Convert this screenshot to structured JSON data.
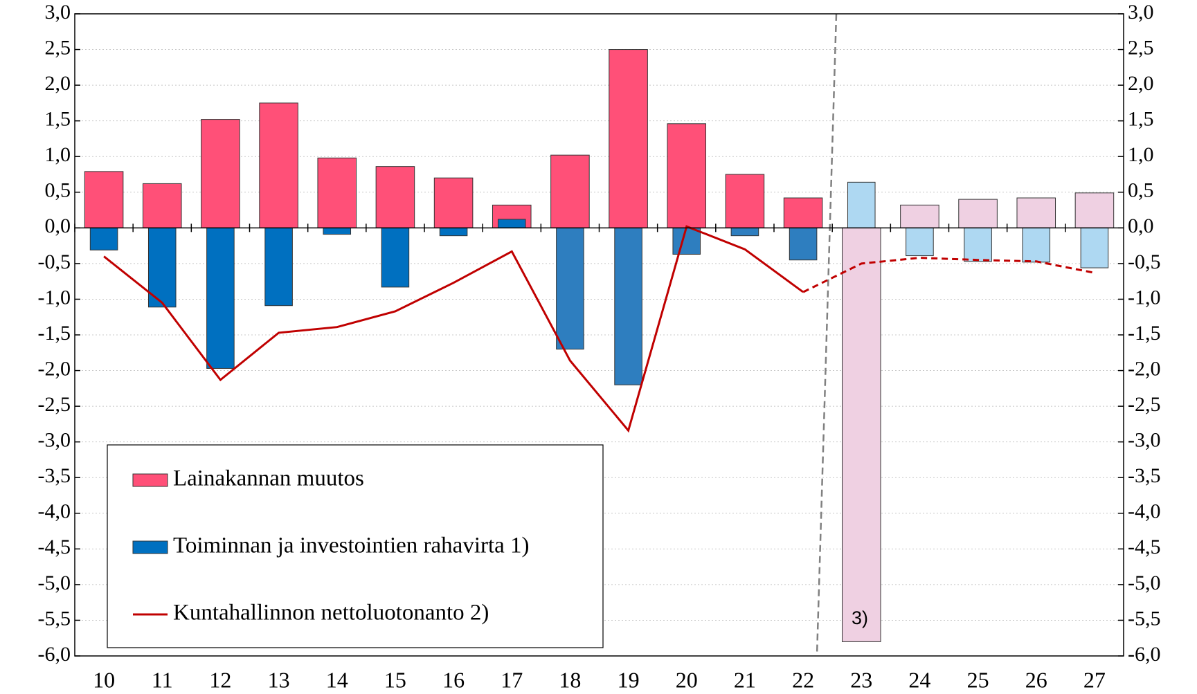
{
  "chart_data": {
    "type": "bar-line",
    "categories": [
      "10",
      "11",
      "12",
      "13",
      "14",
      "15",
      "16",
      "17",
      "18",
      "19",
      "20",
      "21",
      "22",
      "23",
      "24",
      "25",
      "26",
      "27"
    ],
    "series": [
      {
        "name": "Lainakannan muutos",
        "color": "#ff5078",
        "colors": [
          "#ff5078",
          "#ff5078",
          "#ff5078",
          "#ff5078",
          "#ff5078",
          "#ff5078",
          "#ff5078",
          "#ff5078",
          "#ff5078",
          "#ff5078",
          "#ff5078",
          "#ff5078",
          "#ff5078",
          "#efd0e2",
          "#efd0e2",
          "#efd0e2",
          "#efd0e2",
          "#efd0e2"
        ],
        "values": [
          0.79,
          0.62,
          1.52,
          1.75,
          0.98,
          0.86,
          0.7,
          0.32,
          1.02,
          2.5,
          1.46,
          0.75,
          0.42,
          -5.8,
          0.32,
          0.4,
          0.42,
          0.49
        ]
      },
      {
        "name": "Toiminnan ja investointien rahavirta 1)",
        "color": "#0070c0",
        "colors": [
          "#0070c0",
          "#0070c0",
          "#0070c0",
          "#0070c0",
          "#0070c0",
          "#0070c0",
          "#0070c0",
          "#0070c0",
          "#2e7ebf",
          "#2e7ebf",
          "#2e7ebf",
          "#2e7ebf",
          "#2e7ebf",
          "#aed8f2",
          "#aed8f2",
          "#aed8f2",
          "#aed8f2",
          "#aed8f2"
        ],
        "values": [
          -0.31,
          -1.11,
          -1.97,
          -1.09,
          -0.09,
          -0.83,
          -0.11,
          0.12,
          -1.7,
          -2.2,
          -0.37,
          -0.11,
          -0.45,
          0.64,
          -0.39,
          -0.47,
          -0.48,
          -0.56
        ]
      },
      {
        "name": "Kuntahallinnon nettoluotonanto 2)",
        "color": "#c00000",
        "line": true,
        "line_styles": [
          "solid",
          "solid",
          "solid",
          "solid",
          "solid",
          "solid",
          "solid",
          "solid",
          "solid",
          "solid",
          "solid",
          "solid",
          "solid",
          "dashed",
          "dashed",
          "dashed",
          "dashed",
          "dashed"
        ],
        "values": [
          -0.4,
          -1.05,
          -2.13,
          -1.47,
          -1.39,
          -1.17,
          -0.77,
          -0.33,
          -1.86,
          -2.84,
          0.02,
          -0.3,
          -0.9,
          -0.5,
          -0.42,
          -0.45,
          -0.47,
          -0.63
        ]
      }
    ],
    "annotation": "3)",
    "ylim": [
      -6,
      3
    ],
    "yticks": [
      {
        "value": 3,
        "label": "3,0"
      },
      {
        "value": 2.5,
        "label": "2,5"
      },
      {
        "value": 2,
        "label": "2,0"
      },
      {
        "value": 1.5,
        "label": "1,5"
      },
      {
        "value": 1,
        "label": "1,0"
      },
      {
        "value": 0.5,
        "label": "0,5"
      },
      {
        "value": 0,
        "label": "0,0"
      },
      {
        "value": -0.5,
        "label": "-0,5"
      },
      {
        "value": -1,
        "label": "-1,0"
      },
      {
        "value": -1.5,
        "label": "-1,5"
      },
      {
        "value": -2,
        "label": "-2,0"
      },
      {
        "value": -2.5,
        "label": "-2,5"
      },
      {
        "value": -3,
        "label": "-3,0"
      },
      {
        "value": -3.5,
        "label": "-3,5"
      },
      {
        "value": -4,
        "label": "-4,0"
      },
      {
        "value": -4.5,
        "label": "-4,5"
      },
      {
        "value": -5,
        "label": "-5,0"
      },
      {
        "value": -5.5,
        "label": "-5,5"
      },
      {
        "value": -6,
        "label": "-6,0"
      }
    ],
    "y2lim": [
      -6,
      3
    ],
    "y2ticks": [
      {
        "value": 3,
        "label": "3,0"
      },
      {
        "value": 2.5,
        "label": "2,5"
      },
      {
        "value": 2,
        "label": "2,0"
      },
      {
        "value": 1.5,
        "label": "1,5"
      },
      {
        "value": 1,
        "label": "1,0"
      },
      {
        "value": 0.5,
        "label": "0,5"
      },
      {
        "value": 0,
        "label": "0,0"
      },
      {
        "value": -0.5,
        "label": "-0,5"
      },
      {
        "value": -1,
        "label": "-1,0"
      },
      {
        "value": -1.5,
        "label": "-1,5"
      },
      {
        "value": -2,
        "label": "-2,0"
      },
      {
        "value": -2.5,
        "label": "-2,5"
      },
      {
        "value": -3,
        "label": "-3,0"
      },
      {
        "value": -3.5,
        "label": "-3,5"
      },
      {
        "value": -4,
        "label": "-4,0"
      },
      {
        "value": -4.5,
        "label": "-4,5"
      },
      {
        "value": -5,
        "label": "-5,0"
      },
      {
        "value": -5.5,
        "label": "-5,5"
      },
      {
        "value": -6,
        "label": "-6,0"
      }
    ],
    "grid": true,
    "legend": "bottom-left"
  }
}
